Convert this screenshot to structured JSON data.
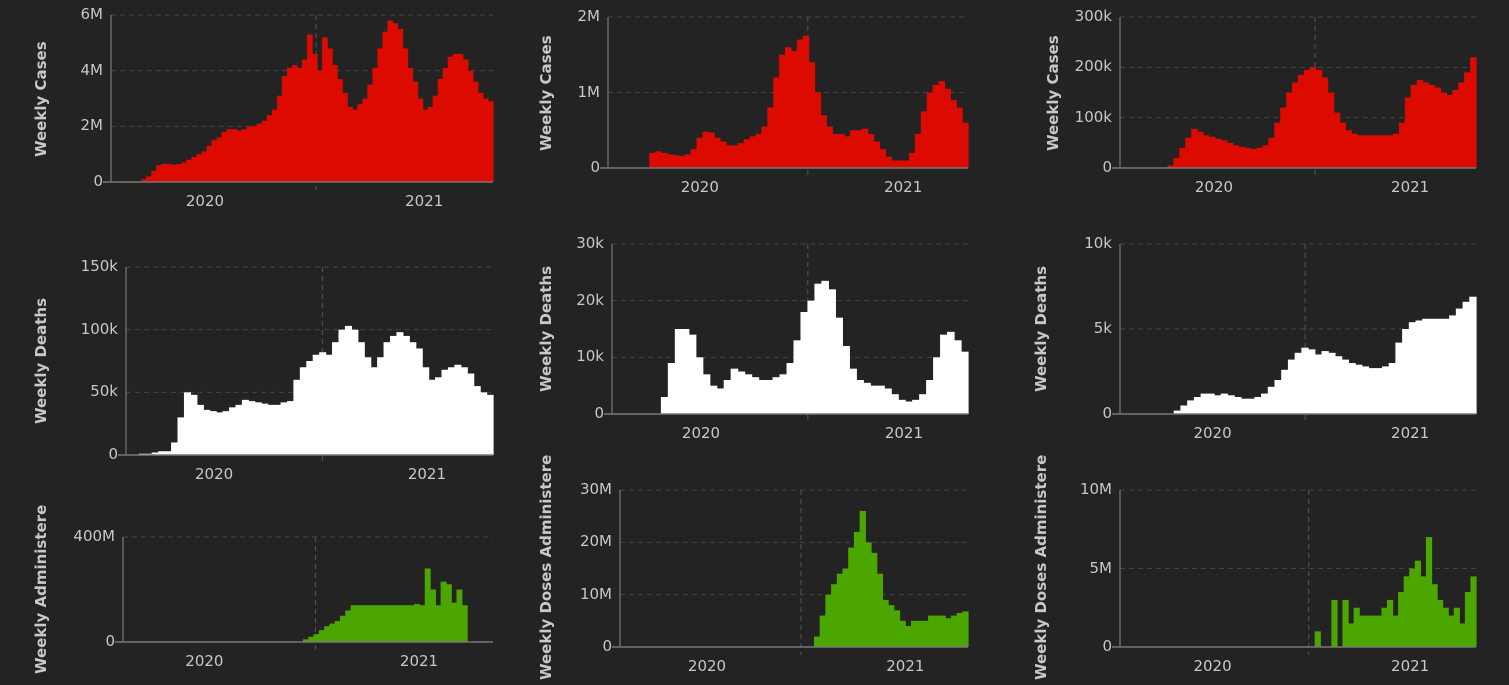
{
  "colors": {
    "cases": "#dd0a00",
    "deaths": "#ffffff",
    "vaccines": "#4ca600",
    "background": "#232323",
    "text": "#c8c8c8"
  },
  "chart_data": [
    {
      "type": "bar",
      "title": "",
      "ylabel": "Weekly Cases",
      "color": "cases",
      "unit": "M",
      "ylim": [
        0,
        6
      ],
      "yticks": [
        {
          "v": 0,
          "label": "0"
        },
        {
          "v": 2,
          "label": "2M"
        },
        {
          "v": 4,
          "label": "4M"
        },
        {
          "v": 6,
          "label": "6M"
        }
      ],
      "xticks": [
        "2020",
        "2021"
      ],
      "values": [
        0,
        0.01,
        0.03,
        0.03,
        0.01,
        0.02,
        0.1,
        0.2,
        0.4,
        0.6,
        0.65,
        0.65,
        0.62,
        0.65,
        0.7,
        0.8,
        0.9,
        1.0,
        1.1,
        1.3,
        1.5,
        1.6,
        1.8,
        1.9,
        1.9,
        1.85,
        1.9,
        2.0,
        2.0,
        2.1,
        2.2,
        2.4,
        2.6,
        3.1,
        3.8,
        4.1,
        4.2,
        4.1,
        4.4,
        5.3,
        4.6,
        4.0,
        5.2,
        4.8,
        4.2,
        3.7,
        3.2,
        2.7,
        2.6,
        2.8,
        3.0,
        3.5,
        4.1,
        4.8,
        5.4,
        5.8,
        5.7,
        5.5,
        4.8,
        4.1,
        3.6,
        3.0,
        2.6,
        2.7,
        3.1,
        3.7,
        4.1,
        4.5,
        4.6,
        4.6,
        4.4,
        4.0,
        3.6,
        3.2,
        3.0,
        2.9
      ]
    },
    {
      "type": "bar",
      "title": "",
      "ylabel": "Weekly Cases",
      "color": "cases",
      "unit": "M",
      "ylim": [
        0,
        2
      ],
      "yticks": [
        {
          "v": 0,
          "label": "0"
        },
        {
          "v": 1,
          "label": "1M"
        },
        {
          "v": 2,
          "label": "2M"
        }
      ],
      "xticks": [
        "2020",
        "2021"
      ],
      "values": [
        0,
        0,
        0,
        0,
        0,
        0,
        0,
        0.2,
        0.22,
        0.2,
        0.18,
        0.17,
        0.16,
        0.18,
        0.25,
        0.4,
        0.48,
        0.47,
        0.4,
        0.35,
        0.3,
        0.3,
        0.33,
        0.38,
        0.42,
        0.45,
        0.55,
        0.8,
        1.2,
        1.5,
        1.6,
        1.55,
        1.7,
        1.75,
        1.4,
        1.0,
        0.7,
        0.55,
        0.45,
        0.45,
        0.42,
        0.5,
        0.5,
        0.52,
        0.45,
        0.35,
        0.25,
        0.15,
        0.1,
        0.1,
        0.1,
        0.2,
        0.45,
        0.75,
        1.0,
        1.1,
        1.15,
        1.05,
        0.9,
        0.8,
        0.6
      ]
    },
    {
      "type": "bar",
      "title": "",
      "ylabel": "Weekly Cases",
      "color": "cases",
      "unit": "k",
      "ylim": [
        0,
        300
      ],
      "yticks": [
        {
          "v": 0,
          "label": "0"
        },
        {
          "v": 100,
          "label": "100k"
        },
        {
          "v": 200,
          "label": "200k"
        },
        {
          "v": 300,
          "label": "300k"
        }
      ],
      "xticks": [
        "2020",
        "2021"
      ],
      "values": [
        0,
        0,
        0,
        0,
        0,
        0,
        0,
        0,
        5,
        20,
        40,
        60,
        78,
        72,
        65,
        62,
        58,
        55,
        50,
        45,
        42,
        40,
        38,
        40,
        45,
        60,
        90,
        120,
        150,
        170,
        185,
        195,
        200,
        195,
        180,
        150,
        110,
        90,
        75,
        68,
        65,
        65,
        65,
        65,
        65,
        65,
        68,
        90,
        140,
        165,
        175,
        170,
        165,
        160,
        150,
        145,
        155,
        170,
        190,
        220
      ]
    },
    {
      "type": "bar",
      "title": "",
      "ylabel": "Weekly Deaths",
      "color": "deaths",
      "unit": "k",
      "ylim": [
        0,
        150
      ],
      "yticks": [
        {
          "v": 0,
          "label": "0"
        },
        {
          "v": 50,
          "label": "50k"
        },
        {
          "v": 100,
          "label": "100k"
        },
        {
          "v": 150,
          "label": "150k"
        }
      ],
      "xticks": [
        "2020",
        "2021"
      ],
      "values": [
        0,
        0,
        1,
        1,
        2,
        3,
        3,
        10,
        30,
        50,
        48,
        40,
        36,
        35,
        34,
        35,
        38,
        40,
        44,
        43,
        42,
        41,
        40,
        40,
        42,
        43,
        60,
        70,
        75,
        80,
        82,
        80,
        90,
        100,
        103,
        100,
        90,
        78,
        70,
        78,
        90,
        95,
        98,
        95,
        90,
        85,
        70,
        60,
        62,
        68,
        70,
        72,
        70,
        65,
        55,
        50,
        48
      ]
    },
    {
      "type": "bar",
      "title": "",
      "ylabel": "Weekly Deaths",
      "color": "deaths",
      "unit": "k",
      "ylim": [
        0,
        30
      ],
      "yticks": [
        {
          "v": 0,
          "label": "0"
        },
        {
          "v": 10,
          "label": "10k"
        },
        {
          "v": 20,
          "label": "20k"
        },
        {
          "v": 30,
          "label": "30k"
        }
      ],
      "xticks": [
        "2020",
        "2021"
      ],
      "values": [
        0,
        0,
        0,
        0,
        0,
        0,
        0,
        3,
        9,
        15,
        15,
        14,
        10,
        7,
        5,
        4.5,
        6,
        8,
        7.5,
        7,
        6.5,
        6,
        6,
        6.5,
        7,
        9,
        13,
        18,
        20,
        23,
        23.5,
        22,
        17,
        12,
        8,
        6,
        5.5,
        5,
        5,
        4.5,
        3.5,
        2.5,
        2.2,
        2.5,
        3.5,
        6,
        10,
        14,
        14.5,
        13,
        11
      ]
    },
    {
      "type": "bar",
      "title": "",
      "ylabel": "Weekly Deaths",
      "color": "deaths",
      "unit": "k",
      "ylim": [
        0,
        10
      ],
      "yticks": [
        {
          "v": 0,
          "label": "0"
        },
        {
          "v": 5,
          "label": "5k"
        },
        {
          "v": 10,
          "label": "10k"
        }
      ],
      "xticks": [
        "2020",
        "2021"
      ],
      "values": [
        0,
        0,
        0,
        0,
        0,
        0,
        0,
        0,
        0.2,
        0.5,
        0.8,
        1.0,
        1.2,
        1.2,
        1.1,
        1.2,
        1.1,
        1.0,
        0.9,
        0.9,
        1.0,
        1.2,
        1.6,
        2.0,
        2.6,
        3.2,
        3.6,
        3.9,
        3.8,
        3.5,
        3.7,
        3.6,
        3.4,
        3.2,
        3.0,
        2.9,
        2.8,
        2.7,
        2.7,
        2.8,
        3.0,
        4.2,
        5.0,
        5.4,
        5.5,
        5.6,
        5.6,
        5.6,
        5.6,
        5.8,
        6.2,
        6.6,
        6.9
      ]
    },
    {
      "type": "bar",
      "title": "",
      "ylabel": "Weekly Administere",
      "color": "vaccines",
      "unit": "M",
      "ylim": [
        0,
        400
      ],
      "yticks": [
        {
          "v": 0,
          "label": "0"
        },
        {
          "v": 400,
          "label": "400M"
        }
      ],
      "xticks": [
        "2020",
        "2021"
      ],
      "values": [
        0,
        0,
        0,
        0,
        0,
        0,
        0,
        0,
        0,
        0,
        0,
        0,
        0,
        0,
        0,
        0,
        0,
        0,
        0,
        0,
        0,
        0,
        0,
        0,
        0,
        0,
        0,
        0,
        0,
        0,
        0,
        0,
        0,
        0,
        10,
        20,
        30,
        45,
        60,
        70,
        80,
        100,
        120,
        140,
        140,
        140,
        140,
        140,
        140,
        140,
        140,
        140,
        140,
        140,
        140,
        145,
        140,
        280,
        200,
        140,
        230,
        220,
        150,
        200,
        140
      ]
    },
    {
      "type": "bar",
      "title": "",
      "ylabel": "Weekly Doses Administere",
      "color": "vaccines",
      "unit": "M",
      "ylim": [
        0,
        30
      ],
      "yticks": [
        {
          "v": 0,
          "label": "0"
        },
        {
          "v": 10,
          "label": "10M"
        },
        {
          "v": 20,
          "label": "20M"
        },
        {
          "v": 30,
          "label": "30M"
        }
      ],
      "xticks": [
        "2020",
        "2021"
      ],
      "values": [
        0,
        0,
        0,
        0,
        0,
        0,
        0,
        0,
        0,
        0,
        0,
        0,
        0,
        0,
        0,
        0,
        0,
        0,
        0,
        0,
        0,
        0,
        0,
        0,
        0,
        0,
        0,
        0,
        0,
        0,
        0,
        0,
        0,
        0,
        2,
        6,
        10,
        12,
        14,
        15,
        19,
        22,
        26,
        20,
        18,
        14,
        9,
        8,
        7,
        5,
        4,
        5,
        5,
        5,
        6,
        6,
        6,
        5.5,
        6,
        6.5,
        6.8
      ]
    },
    {
      "type": "bar",
      "title": "",
      "ylabel": "Weekly Doses Administere",
      "color": "vaccines",
      "unit": "M",
      "ylim": [
        0,
        10
      ],
      "yticks": [
        {
          "v": 0,
          "label": "0"
        },
        {
          "v": 5,
          "label": "5M"
        },
        {
          "v": 10,
          "label": "10M"
        }
      ],
      "xticks": [
        "2020",
        "2021"
      ],
      "values": [
        0,
        0,
        0,
        0,
        0,
        0,
        0,
        0,
        0,
        0,
        0,
        0,
        0,
        0,
        0,
        0,
        0,
        0,
        0,
        0,
        0,
        0,
        0,
        0,
        0,
        0,
        0,
        0,
        0,
        0,
        0,
        0,
        0,
        0,
        0,
        1,
        0,
        0,
        3,
        0,
        3,
        1.5,
        2.5,
        2,
        2,
        2,
        2,
        2.5,
        3,
        2,
        3.5,
        4.5,
        5,
        5.5,
        4.5,
        7,
        4,
        3,
        2.5,
        2,
        2.5,
        1.5,
        3.5,
        4.5
      ]
    }
  ]
}
